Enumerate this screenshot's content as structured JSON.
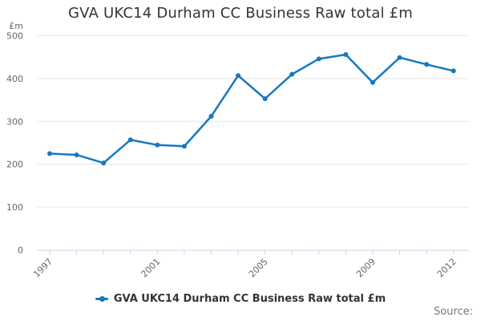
{
  "chart_data": {
    "type": "line",
    "title": "GVA UKC14 Durham CC Business Raw total £m",
    "y_axis_unit": "£m",
    "xlabel": "",
    "ylabel": "£m",
    "categories": [
      "1997",
      "1998",
      "1999",
      "2000",
      "2001",
      "2002",
      "2003",
      "2004",
      "2005",
      "2006",
      "2007",
      "2008",
      "2009",
      "2010",
      "2011",
      "2012"
    ],
    "series": [
      {
        "name": "GVA UKC14 Durham CC Business Raw total £m",
        "color": "#1778be",
        "values": [
          225,
          222,
          203,
          257,
          245,
          242,
          312,
          407,
          353,
          410,
          446,
          456,
          391,
          449,
          433,
          418
        ]
      }
    ],
    "ylim": [
      0,
      500
    ],
    "y_ticks": [
      0,
      100,
      200,
      300,
      400,
      500
    ],
    "x_labeled_ticks": {
      "0": "1997",
      "4": "2001",
      "8": "2005",
      "12": "2009",
      "15": "2012"
    },
    "grid": true,
    "legend_position": "bottom",
    "colors": {
      "line": "#1778be",
      "grid": "#e6e6e6",
      "axis": "#ccd6eb",
      "tick_label": "#666666",
      "title": "#333333",
      "source": "#777777"
    }
  },
  "legend": {
    "label": "GVA UKC14 Durham CC Business Raw total £m"
  },
  "footer": {
    "source_label": "Source:"
  }
}
